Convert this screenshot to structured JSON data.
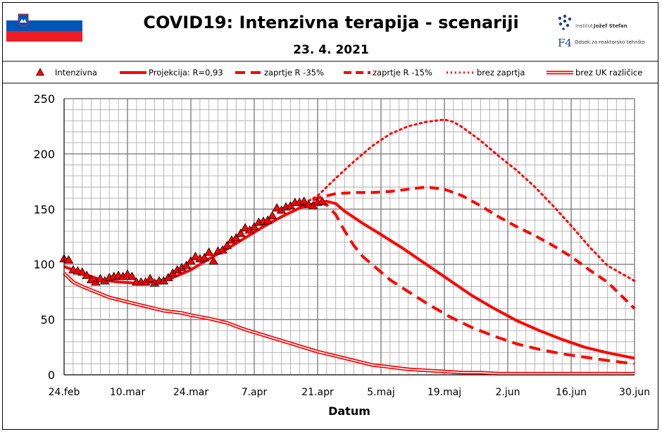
{
  "colors": {
    "accent": "#ff0000",
    "grid": "#999999",
    "major_grid": "#808080",
    "text": "#000000"
  },
  "header": {
    "title": "COVID19: Intenzivna terapija - scenariji",
    "date": "23. 4. 2021",
    "logo_institute_prefix": "Institut",
    "logo_institute_name": "Jožef Stefan",
    "logo_dept_mark": "F4",
    "logo_dept": "Odsek za reaktorsko tehniko",
    "flag_icon": "slovenian-flag-icon"
  },
  "legend": [
    {
      "label": "Intenzivna",
      "style": "triangle"
    },
    {
      "label": "Projekcija: R=0,93",
      "style": "thick"
    },
    {
      "label": "zaprtje R -35%",
      "style": "longdash"
    },
    {
      "label": "zaprtje R -15%",
      "style": "dash"
    },
    {
      "label": "brez zaprtja",
      "style": "dot"
    },
    {
      "label": "brez UK različice",
      "style": "double"
    }
  ],
  "chart_data": {
    "type": "line",
    "title": "COVID19: Intenzivna terapija - scenariji",
    "subtitle": "23. 4. 2021",
    "xlabel": "Datum",
    "ylabel": "",
    "xlim": [
      0,
      126
    ],
    "ylim": [
      0,
      250
    ],
    "yticks": [
      0,
      50,
      100,
      150,
      200,
      250
    ],
    "xticks": [
      {
        "day": 0,
        "label": "24.feb"
      },
      {
        "day": 14,
        "label": "10.mar"
      },
      {
        "day": 28,
        "label": "24.mar"
      },
      {
        "day": 42,
        "label": "7.apr"
      },
      {
        "day": 56,
        "label": "21.apr"
      },
      {
        "day": 70,
        "label": "5.maj"
      },
      {
        "day": 84,
        "label": "19.maj"
      },
      {
        "day": 98,
        "label": "2.jun"
      },
      {
        "day": 112,
        "label": "16.jun"
      },
      {
        "day": 126,
        "label": "30.jun"
      }
    ],
    "grid": true,
    "series": [
      {
        "name": "Intenzivna",
        "kind": "markers",
        "x": [
          0,
          1,
          2,
          3,
          4,
          5,
          6,
          7,
          8,
          9,
          10,
          11,
          12,
          13,
          14,
          15,
          16,
          17,
          18,
          19,
          20,
          21,
          22,
          23,
          24,
          25,
          26,
          27,
          28,
          29,
          30,
          31,
          32,
          33,
          34,
          35,
          36,
          37,
          38,
          39,
          40,
          41,
          42,
          43,
          44,
          45,
          46,
          47,
          48,
          49,
          50,
          51,
          52,
          53,
          54,
          55,
          56,
          57
        ],
        "y": [
          105,
          104,
          95,
          94,
          93,
          90,
          86,
          84,
          87,
          85,
          88,
          89,
          90,
          89,
          91,
          89,
          84,
          84,
          84,
          87,
          83,
          85,
          85,
          88,
          92,
          95,
          97,
          99,
          103,
          107,
          105,
          106,
          111,
          103,
          112,
          113,
          117,
          122,
          124,
          128,
          133,
          131,
          134,
          138,
          139,
          140,
          144,
          151,
          149,
          152,
          153,
          156,
          156,
          157,
          154,
          153,
          156,
          157
        ]
      },
      {
        "name": "Projekcija: R=0,93",
        "kind": "thick",
        "x": [
          0,
          4,
          8,
          12,
          16,
          20,
          24,
          28,
          32,
          36,
          40,
          44,
          48,
          52,
          56,
          58,
          60,
          62,
          66,
          70,
          75,
          80,
          85,
          90,
          95,
          100,
          105,
          110,
          115,
          120,
          126
        ],
        "y": [
          98,
          92,
          86,
          84,
          83,
          84,
          88,
          95,
          105,
          114,
          124,
          134,
          143,
          151,
          156,
          157,
          155,
          148,
          137,
          127,
          114,
          100,
          86,
          72,
          60,
          49,
          40,
          32,
          25,
          20,
          15
        ]
      },
      {
        "name": "zaprtje R -35%",
        "kind": "longdash",
        "x": [
          56,
          58,
          60,
          62,
          64,
          66,
          68,
          70,
          72,
          75,
          80,
          85,
          90,
          95,
          100,
          105,
          110,
          115,
          120,
          126
        ],
        "y": [
          156,
          154,
          145,
          130,
          117,
          107,
          100,
          93,
          86,
          78,
          65,
          53,
          43,
          35,
          28,
          23,
          19,
          16,
          13,
          10
        ]
      },
      {
        "name": "zaprtje R -15%",
        "kind": "dash",
        "x": [
          52,
          56,
          60,
          64,
          68,
          72,
          76,
          80,
          84,
          88,
          92,
          96,
          100,
          104,
          108,
          112,
          116,
          120,
          126
        ],
        "y": [
          152,
          160,
          164,
          165,
          165,
          166,
          168,
          170,
          168,
          162,
          153,
          143,
          134,
          126,
          117,
          107,
          95,
          84,
          60
        ]
      },
      {
        "name": "brez zaprtja",
        "kind": "dot",
        "x": [
          52,
          56,
          60,
          64,
          68,
          72,
          76,
          80,
          84,
          86,
          88,
          92,
          96,
          100,
          104,
          108,
          112,
          116,
          120,
          126
        ],
        "y": [
          153,
          162,
          178,
          193,
          207,
          218,
          225,
          229,
          231,
          229,
          224,
          212,
          198,
          185,
          170,
          153,
          135,
          116,
          99,
          85
        ]
      },
      {
        "name": "brez UK različice",
        "kind": "double",
        "x": [
          0,
          2,
          4,
          7,
          10,
          14,
          18,
          22,
          26,
          28,
          32,
          36,
          40,
          44,
          48,
          52,
          56,
          60,
          64,
          68,
          72,
          76,
          80,
          84,
          88,
          92,
          96,
          100,
          106,
          110,
          116,
          120,
          126
        ],
        "y": [
          92,
          84,
          80,
          75,
          70,
          66,
          62,
          58,
          56,
          54,
          51,
          47,
          41,
          36,
          31,
          26,
          21,
          17,
          13,
          9,
          7,
          5,
          4,
          3,
          2,
          2,
          1,
          1,
          1,
          1,
          1,
          1,
          1
        ]
      }
    ]
  }
}
